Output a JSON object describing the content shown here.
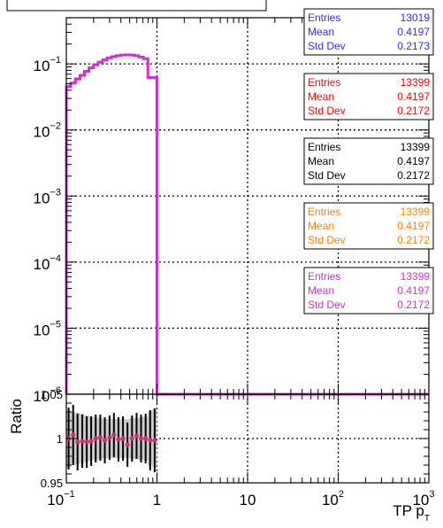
{
  "chart_data": [
    {
      "type": "step-histogram",
      "scale": {
        "x": "log",
        "y": "log"
      },
      "xlim": [
        0.1,
        1000
      ],
      "ylim": [
        1e-06,
        0.5
      ],
      "grid": true,
      "x_tick_labels": [
        "10",
        "1",
        "10",
        "10",
        "10"
      ],
      "x_tick_superscripts": [
        "−1",
        "",
        "",
        "2",
        "3"
      ],
      "x_tick_values": [
        0.1,
        1,
        10,
        100,
        1000
      ],
      "y_tick_bases": [
        "10",
        "10",
        "10",
        "10",
        "10",
        "10"
      ],
      "y_tick_superscripts": [
        "−1",
        "−2",
        "−3",
        "−4",
        "−5",
        "−6"
      ],
      "y_tick_values": [
        0.1,
        0.01,
        0.001,
        0.0001,
        1e-05,
        1e-06
      ],
      "bin_edges": [
        0.1,
        0.1122,
        0.1259,
        0.1413,
        0.1585,
        0.1778,
        0.1995,
        0.2239,
        0.2512,
        0.2818,
        0.3162,
        0.3548,
        0.3981,
        0.4467,
        0.5012,
        0.5623,
        0.631,
        0.7079,
        0.7943,
        0.8913,
        1.0
      ],
      "series": [
        {
          "color": "#2f2fef",
          "values": [
            0.046,
            0.052,
            0.06,
            0.068,
            0.078,
            0.088,
            0.098,
            0.107,
            0.116,
            0.124,
            0.13,
            0.134,
            0.137,
            0.138,
            0.137,
            0.134,
            0.128,
            0.121,
            0.063,
            0.063
          ]
        },
        {
          "color": "#ff0000",
          "values": [
            0.045,
            0.051,
            0.059,
            0.067,
            0.077,
            0.087,
            0.097,
            0.106,
            0.115,
            0.123,
            0.129,
            0.133,
            0.136,
            0.137,
            0.136,
            0.133,
            0.127,
            0.12,
            0.062,
            0.062
          ]
        },
        {
          "color": "#000000",
          "values": [
            0.045,
            0.051,
            0.059,
            0.067,
            0.077,
            0.087,
            0.097,
            0.106,
            0.115,
            0.123,
            0.129,
            0.133,
            0.136,
            0.137,
            0.136,
            0.133,
            0.127,
            0.12,
            0.062,
            0.062
          ]
        },
        {
          "color": "#ff7f00",
          "values": [
            0.045,
            0.051,
            0.059,
            0.067,
            0.077,
            0.087,
            0.097,
            0.106,
            0.115,
            0.123,
            0.129,
            0.133,
            0.136,
            0.137,
            0.136,
            0.133,
            0.127,
            0.12,
            0.062,
            0.062
          ]
        },
        {
          "color": "#cc33cc",
          "values": [
            0.045,
            0.051,
            0.059,
            0.067,
            0.077,
            0.087,
            0.097,
            0.106,
            0.115,
            0.123,
            0.129,
            0.133,
            0.136,
            0.137,
            0.136,
            0.133,
            0.127,
            0.12,
            0.062,
            0.062
          ]
        }
      ]
    },
    {
      "type": "ratio",
      "scale": {
        "x": "log",
        "y": "linear"
      },
      "ylabel": "Ratio",
      "xlabel_main": "TP p",
      "xlabel_sub": "T",
      "xlim": [
        0.1,
        1000
      ],
      "ylim": [
        0.95,
        1.05
      ],
      "y_tick_labels": [
        "1.05",
        "1",
        "0.95"
      ],
      "y_tick_values": [
        1.05,
        1.0,
        0.95
      ],
      "grid": true,
      "points": [
        {
          "x": 0.106,
          "y": 1.0,
          "err": 0.035,
          "band": 0.032
        },
        {
          "x": 0.119,
          "y": 1.004,
          "err": 0.034,
          "band": 0.03
        },
        {
          "x": 0.133,
          "y": 0.996,
          "err": 0.032,
          "band": 0.029
        },
        {
          "x": 0.15,
          "y": 0.997,
          "err": 0.03,
          "band": 0.028
        },
        {
          "x": 0.168,
          "y": 0.996,
          "err": 0.029,
          "band": 0.026
        },
        {
          "x": 0.188,
          "y": 0.997,
          "err": 0.028,
          "band": 0.025
        },
        {
          "x": 0.211,
          "y": 1.0,
          "err": 0.027,
          "band": 0.024
        },
        {
          "x": 0.237,
          "y": 1.001,
          "err": 0.026,
          "band": 0.023
        },
        {
          "x": 0.266,
          "y": 0.998,
          "err": 0.026,
          "band": 0.022
        },
        {
          "x": 0.3,
          "y": 1.001,
          "err": 0.025,
          "band": 0.022
        },
        {
          "x": 0.335,
          "y": 1.004,
          "err": 0.025,
          "band": 0.022
        },
        {
          "x": 0.376,
          "y": 0.999,
          "err": 0.025,
          "band": 0.022
        },
        {
          "x": 0.422,
          "y": 1.0,
          "err": 0.025,
          "band": 0.022
        },
        {
          "x": 0.473,
          "y": 0.993,
          "err": 0.025,
          "band": 0.022
        },
        {
          "x": 0.531,
          "y": 1.0,
          "err": 0.026,
          "band": 0.023
        },
        {
          "x": 0.596,
          "y": 1.003,
          "err": 0.026,
          "band": 0.023
        },
        {
          "x": 0.668,
          "y": 1.0,
          "err": 0.027,
          "band": 0.024
        },
        {
          "x": 0.75,
          "y": 1.0,
          "err": 0.028,
          "band": 0.025
        },
        {
          "x": 0.841,
          "y": 0.998,
          "err": 0.034,
          "band": 0.031
        },
        {
          "x": 0.944,
          "y": 0.998,
          "err": 0.036,
          "band": 0.033
        }
      ]
    }
  ],
  "stats_boxes": [
    {
      "color": "#2f2fef",
      "label_entries": "Entries",
      "label_mean": "Mean",
      "label_std": "Std Dev",
      "entries": "13019",
      "mean": "0.4197",
      "std": "0.2173"
    },
    {
      "color": "#ff0000",
      "label_entries": "Entries",
      "label_mean": "Mean",
      "label_std": "Std Dev",
      "entries": "13399",
      "mean": "0.4197",
      "std": "0.2172"
    },
    {
      "color": "#000000",
      "label_entries": "Entries",
      "label_mean": "Mean",
      "label_std": "Std Dev",
      "entries": "13399",
      "mean": "0.4197",
      "std": "0.2172"
    },
    {
      "color": "#ff7f00",
      "label_entries": "Entries",
      "label_mean": "Mean",
      "label_std": "Std Dev",
      "entries": "13399",
      "mean": "0.4197",
      "std": "0.2172"
    },
    {
      "color": "#cc33cc",
      "label_entries": "Entries",
      "label_mean": "Mean",
      "label_std": "Std Dev",
      "entries": "13399",
      "mean": "0.4197",
      "std": "0.2172"
    }
  ],
  "colors": {
    "band": "#c8c8c8",
    "marker": "#cc3377",
    "frame": "#000000"
  }
}
